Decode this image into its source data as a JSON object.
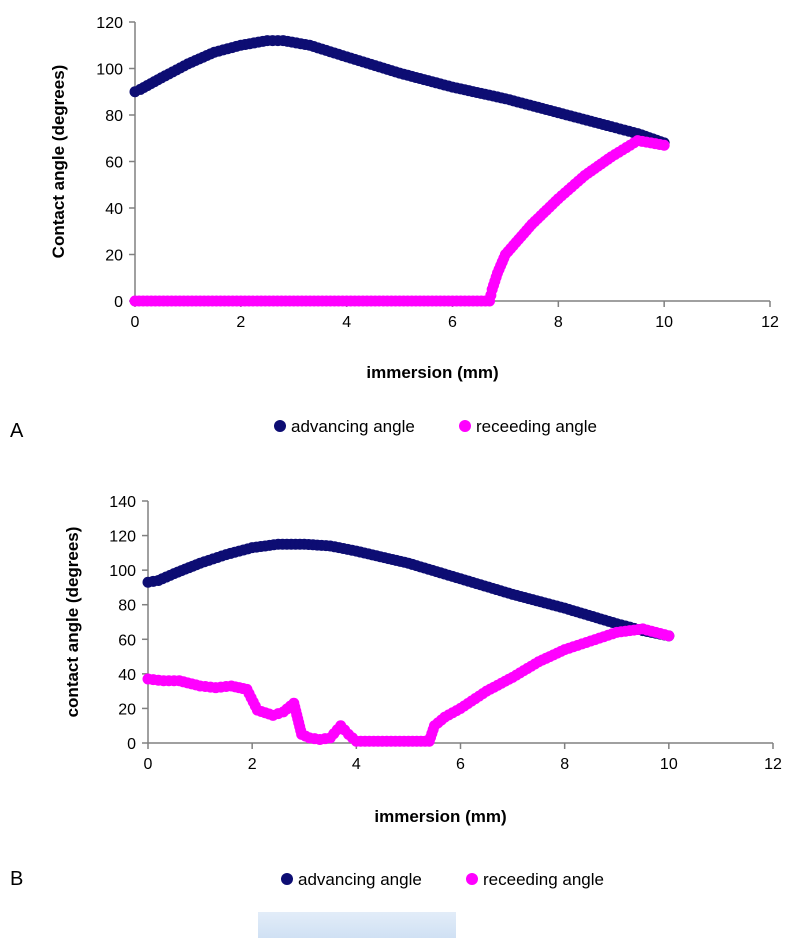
{
  "panels": [
    {
      "label": "A"
    },
    {
      "label": "B"
    }
  ],
  "colors": {
    "advancing": "#0d0d73",
    "receding": "#ff00ff",
    "axis": "#808080"
  },
  "chart_data": [
    {
      "type": "scatter",
      "xlabel": "immersion (mm)",
      "ylabel": "Contact angle (degrees)",
      "xlim": [
        0,
        12
      ],
      "ylim": [
        0,
        120
      ],
      "xticks": [
        "0",
        "2",
        "4",
        "6",
        "8",
        "10",
        "12"
      ],
      "yticks": [
        "0",
        "20",
        "40",
        "60",
        "80",
        "100",
        "120"
      ],
      "grid": false,
      "legend_position": "bottom",
      "series": [
        {
          "name": "advancing angle",
          "color": "#0d0d73",
          "x": [
            0,
            0.1,
            0.5,
            1,
            1.5,
            2,
            2.5,
            2.8,
            3.3,
            4,
            5,
            6,
            7,
            8,
            9,
            9.5,
            10
          ],
          "y": [
            90,
            91,
            96,
            102,
            107,
            110,
            112,
            112,
            110,
            105,
            98,
            92,
            87,
            81,
            75,
            72,
            68
          ]
        },
        {
          "name": "receeding angle",
          "color": "#ff00ff",
          "x": [
            0,
            1,
            2,
            3,
            4,
            5,
            6,
            6.7,
            6.75,
            6.85,
            7,
            7.5,
            8,
            8.5,
            9,
            9.5,
            10
          ],
          "y": [
            0,
            0,
            0,
            0,
            0,
            0,
            0,
            0,
            5,
            12,
            20,
            33,
            44,
            54,
            62,
            69,
            67
          ]
        }
      ]
    },
    {
      "type": "scatter",
      "xlabel": "immersion (mm)",
      "ylabel": "contact angle (degrees)",
      "xlim": [
        0,
        12
      ],
      "ylim": [
        0,
        140
      ],
      "xticks": [
        "0",
        "2",
        "4",
        "6",
        "8",
        "10",
        "12"
      ],
      "yticks": [
        "0",
        "20",
        "40",
        "60",
        "80",
        "100",
        "120",
        "140"
      ],
      "grid": false,
      "legend_position": "bottom",
      "series": [
        {
          "name": "advancing angle",
          "color": "#0d0d73",
          "x": [
            0,
            0.2,
            0.5,
            1,
            1.5,
            2,
            2.5,
            3,
            3.5,
            4,
            5,
            6,
            7,
            8,
            9,
            9.5,
            10
          ],
          "y": [
            93,
            94,
            98,
            104,
            109,
            113,
            115,
            115,
            114,
            111,
            104,
            95,
            86,
            78,
            69,
            65,
            62
          ]
        },
        {
          "name": "receeding angle",
          "color": "#ff00ff",
          "x": [
            0,
            0.3,
            0.6,
            1,
            1.3,
            1.6,
            1.9,
            2.1,
            2.4,
            2.6,
            2.8,
            2.95,
            3.1,
            3.3,
            3.5,
            3.7,
            3.85,
            4,
            4.5,
            5,
            5.4,
            5.5,
            5.7,
            6,
            6.5,
            7,
            7.5,
            8,
            8.5,
            9,
            9.5,
            10
          ],
          "y": [
            37,
            36,
            36,
            33,
            32,
            33,
            31,
            19,
            16,
            18,
            23,
            5,
            3,
            2,
            3,
            10,
            5,
            1,
            1,
            1,
            1,
            10,
            15,
            20,
            30,
            38,
            47,
            54,
            59,
            64,
            66,
            62
          ]
        }
      ]
    }
  ]
}
